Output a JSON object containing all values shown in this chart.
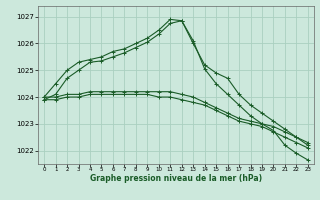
{
  "xlabel": "Graphe pression niveau de la mer (hPa)",
  "ylabel": "",
  "bg_color": "#cce8dc",
  "grid_color": "#aad0c0",
  "line_color": "#1a5c28",
  "xlim": [
    -0.5,
    23.5
  ],
  "ylim": [
    1021.5,
    1027.4
  ],
  "yticks": [
    1022,
    1023,
    1024,
    1025,
    1026,
    1027
  ],
  "xticks": [
    0,
    1,
    2,
    3,
    4,
    5,
    6,
    7,
    8,
    9,
    10,
    11,
    12,
    13,
    14,
    15,
    16,
    17,
    18,
    19,
    20,
    21,
    22,
    23
  ],
  "series": [
    [
      1023.9,
      1024.1,
      1024.7,
      1025.0,
      1025.3,
      1025.35,
      1025.5,
      1025.65,
      1025.85,
      1026.05,
      1026.35,
      1026.75,
      1026.85,
      1026.1,
      1025.05,
      1024.5,
      1024.1,
      1023.7,
      1023.3,
      1023.0,
      1022.75,
      1022.2,
      1021.9,
      1021.65
    ],
    [
      1024.0,
      1024.5,
      1025.0,
      1025.3,
      1025.4,
      1025.5,
      1025.7,
      1025.8,
      1026.0,
      1026.2,
      1026.5,
      1026.9,
      1026.85,
      1026.0,
      1025.2,
      1024.9,
      1024.7,
      1024.1,
      1023.7,
      1023.4,
      1023.1,
      1022.8,
      1022.5,
      1022.2
    ],
    [
      1024.0,
      1024.0,
      1024.1,
      1024.1,
      1024.2,
      1024.2,
      1024.2,
      1024.2,
      1024.2,
      1024.2,
      1024.2,
      1024.2,
      1024.1,
      1024.0,
      1023.8,
      1023.6,
      1023.4,
      1023.2,
      1023.1,
      1023.0,
      1022.9,
      1022.7,
      1022.5,
      1022.3
    ],
    [
      1023.9,
      1023.9,
      1024.0,
      1024.0,
      1024.1,
      1024.1,
      1024.1,
      1024.1,
      1024.1,
      1024.1,
      1024.0,
      1024.0,
      1023.9,
      1023.8,
      1023.7,
      1023.5,
      1023.3,
      1023.1,
      1023.0,
      1022.9,
      1022.7,
      1022.5,
      1022.3,
      1022.1
    ]
  ]
}
